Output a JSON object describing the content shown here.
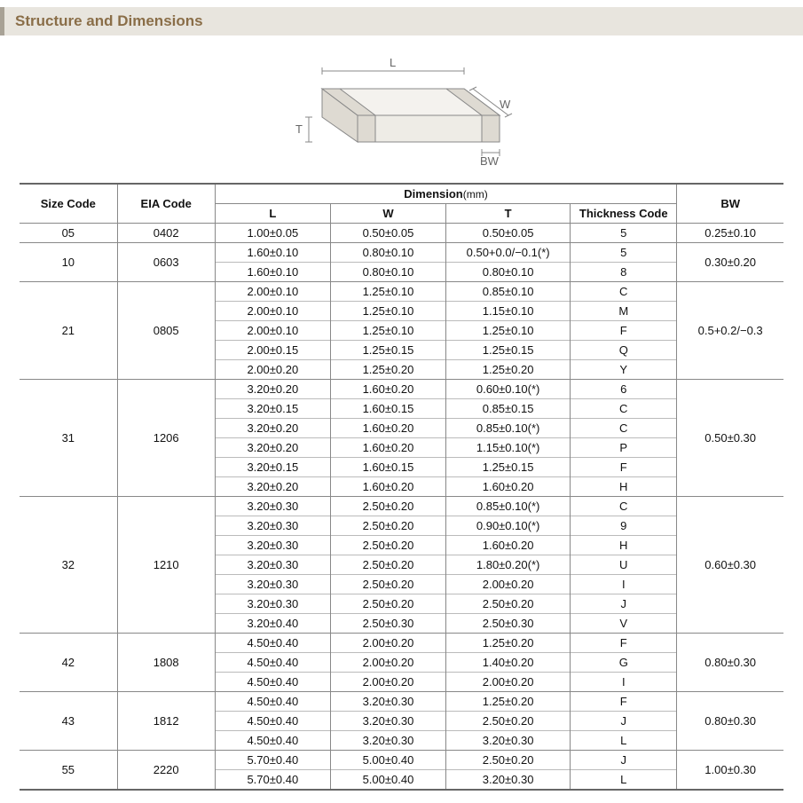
{
  "banner": {
    "title": "Structure and Dimensions"
  },
  "diagram": {
    "labels": {
      "L": "L",
      "W": "W",
      "T": "T",
      "BW": "BW"
    },
    "stroke": "#888888",
    "fill_top": "#f4f2ee",
    "fill_side": "#dedad2",
    "fill_front": "#eeece6",
    "text_color": "#666666"
  },
  "table": {
    "headers": {
      "size_code": "Size Code",
      "eia_code": "EIA Code",
      "dimension": "Dimension",
      "dimension_unit": "(mm)",
      "L": "L",
      "W": "W",
      "T": "T",
      "thickness_code": "Thickness Code",
      "BW": "BW"
    },
    "groups": [
      {
        "size_code": "05",
        "eia_code": "0402",
        "bw": "0.25±0.10",
        "rows": [
          {
            "L": "1.00±0.05",
            "W": "0.50±0.05",
            "T": "0.50±0.05",
            "tc": "5"
          }
        ]
      },
      {
        "size_code": "10",
        "eia_code": "0603",
        "bw": "0.30±0.20",
        "rows": [
          {
            "L": "1.60±0.10",
            "W": "0.80±0.10",
            "T": "0.50+0.0/−0.1(*)",
            "tc": "5"
          },
          {
            "L": "1.60±0.10",
            "W": "0.80±0.10",
            "T": "0.80±0.10",
            "tc": "8"
          }
        ]
      },
      {
        "size_code": "21",
        "eia_code": "0805",
        "bw": "0.5+0.2/−0.3",
        "rows": [
          {
            "L": "2.00±0.10",
            "W": "1.25±0.10",
            "T": "0.85±0.10",
            "tc": "C"
          },
          {
            "L": "2.00±0.10",
            "W": "1.25±0.10",
            "T": "1.15±0.10",
            "tc": "M"
          },
          {
            "L": "2.00±0.10",
            "W": "1.25±0.10",
            "T": "1.25±0.10",
            "tc": "F"
          },
          {
            "L": "2.00±0.15",
            "W": "1.25±0.15",
            "T": "1.25±0.15",
            "tc": "Q"
          },
          {
            "L": "2.00±0.20",
            "W": "1.25±0.20",
            "T": "1.25±0.20",
            "tc": "Y"
          }
        ]
      },
      {
        "size_code": "31",
        "eia_code": "1206",
        "bw": "0.50±0.30",
        "rows": [
          {
            "L": "3.20±0.20",
            "W": "1.60±0.20",
            "T": "0.60±0.10(*)",
            "tc": "6"
          },
          {
            "L": "3.20±0.15",
            "W": "1.60±0.15",
            "T": "0.85±0.15",
            "tc": "C"
          },
          {
            "L": "3.20±0.20",
            "W": "1.60±0.20",
            "T": "0.85±0.10(*)",
            "tc": "C"
          },
          {
            "L": "3.20±0.20",
            "W": "1.60±0.20",
            "T": "1.15±0.10(*)",
            "tc": "P"
          },
          {
            "L": "3.20±0.15",
            "W": "1.60±0.15",
            "T": "1.25±0.15",
            "tc": "F"
          },
          {
            "L": "3.20±0.20",
            "W": "1.60±0.20",
            "T": "1.60±0.20",
            "tc": "H"
          }
        ]
      },
      {
        "size_code": "32",
        "eia_code": "1210",
        "bw": "0.60±0.30",
        "rows": [
          {
            "L": "3.20±0.30",
            "W": "2.50±0.20",
            "T": "0.85±0.10(*)",
            "tc": "C"
          },
          {
            "L": "3.20±0.30",
            "W": "2.50±0.20",
            "T": "0.90±0.10(*)",
            "tc": "9"
          },
          {
            "L": "3.20±0.30",
            "W": "2.50±0.20",
            "T": "1.60±0.20",
            "tc": "H"
          },
          {
            "L": "3.20±0.30",
            "W": "2.50±0.20",
            "T": "1.80±0.20(*)",
            "tc": "U"
          },
          {
            "L": "3.20±0.30",
            "W": "2.50±0.20",
            "T": "2.00±0.20",
            "tc": "I"
          },
          {
            "L": "3.20±0.30",
            "W": "2.50±0.20",
            "T": "2.50±0.20",
            "tc": "J"
          },
          {
            "L": "3.20±0.40",
            "W": "2.50±0.30",
            "T": "2.50±0.30",
            "tc": "V"
          }
        ]
      },
      {
        "size_code": "42",
        "eia_code": "1808",
        "bw": "0.80±0.30",
        "rows": [
          {
            "L": "4.50±0.40",
            "W": "2.00±0.20",
            "T": "1.25±0.20",
            "tc": "F"
          },
          {
            "L": "4.50±0.40",
            "W": "2.00±0.20",
            "T": "1.40±0.20",
            "tc": "G"
          },
          {
            "L": "4.50±0.40",
            "W": "2.00±0.20",
            "T": "2.00±0.20",
            "tc": "I"
          }
        ]
      },
      {
        "size_code": "43",
        "eia_code": "1812",
        "bw": "0.80±0.30",
        "rows": [
          {
            "L": "4.50±0.40",
            "W": "3.20±0.30",
            "T": "1.25±0.20",
            "tc": "F"
          },
          {
            "L": "4.50±0.40",
            "W": "3.20±0.30",
            "T": "2.50±0.20",
            "tc": "J"
          },
          {
            "L": "4.50±0.40",
            "W": "3.20±0.30",
            "T": "3.20±0.30",
            "tc": "L"
          }
        ]
      },
      {
        "size_code": "55",
        "eia_code": "2220",
        "bw": "1.00±0.30",
        "rows": [
          {
            "L": "5.70±0.40",
            "W": "5.00±0.40",
            "T": "2.50±0.20",
            "tc": "J"
          },
          {
            "L": "5.70±0.40",
            "W": "5.00±0.40",
            "T": "3.20±0.30",
            "tc": "L"
          }
        ]
      }
    ]
  }
}
